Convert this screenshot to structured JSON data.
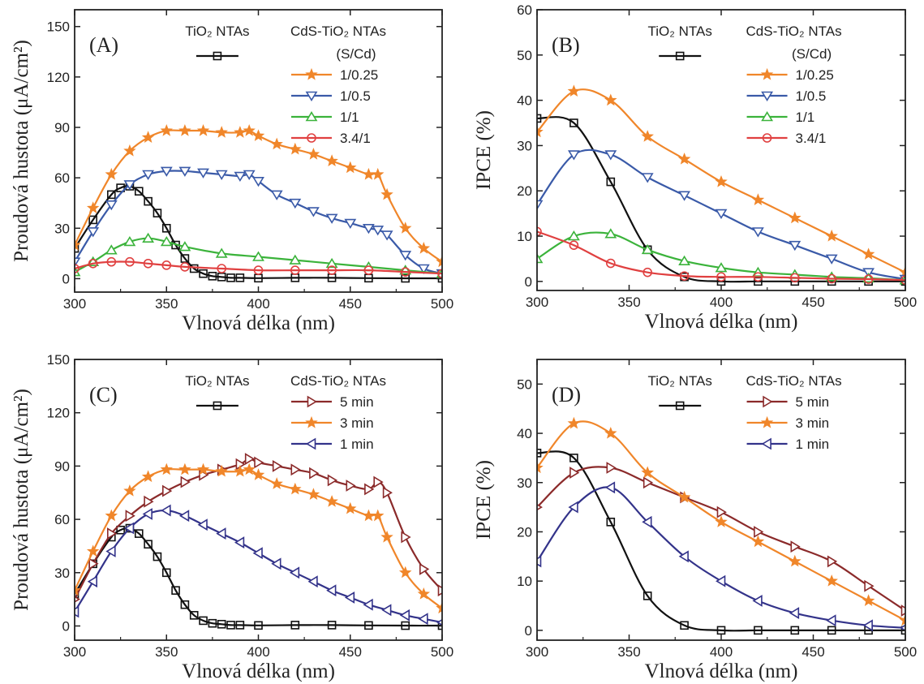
{
  "chart_data": [
    {
      "type": "line",
      "panel_label": "(A)",
      "xlabel": "Vlnová délka (nm)",
      "ylabel": "Proudová hustota (μA/cm²)",
      "xlim": [
        300,
        500
      ],
      "ylim": [
        -8,
        160
      ],
      "xticks": [
        300,
        350,
        400,
        450,
        500
      ],
      "yticks": [
        0,
        30,
        60,
        90,
        120,
        150
      ],
      "legend": {
        "ref_title": "TiO₂ NTAs",
        "title": "CdS-TiO₂ NTAs",
        "subtitle": "(S/Cd)"
      },
      "series": [
        {
          "name": "TiO₂ NTAs",
          "color": "#111111",
          "marker": "square",
          "x": [
            300,
            310,
            320,
            325,
            330,
            335,
            340,
            345,
            350,
            355,
            360,
            365,
            370,
            375,
            380,
            385,
            390,
            400,
            420,
            440,
            460,
            480,
            500
          ],
          "y": [
            18,
            35,
            50,
            54,
            55,
            52,
            46,
            39,
            30,
            20,
            12,
            6,
            3,
            1.5,
            1,
            0.5,
            0.5,
            0.3,
            0.5,
            0.5,
            0.3,
            0.2,
            0.2
          ]
        },
        {
          "name": "1/0.25",
          "color": "#f0862a",
          "marker": "star",
          "x": [
            300,
            310,
            320,
            330,
            340,
            350,
            360,
            370,
            380,
            390,
            395,
            400,
            410,
            420,
            430,
            440,
            450,
            460,
            465,
            470,
            480,
            490,
            500
          ],
          "y": [
            20,
            42,
            62,
            76,
            84,
            88,
            88,
            88,
            87,
            87,
            88,
            85,
            80,
            77,
            74,
            70,
            66,
            62,
            62,
            50,
            30,
            18,
            10
          ]
        },
        {
          "name": "1/0.5",
          "color": "#3a5aa8",
          "marker": "triangle-down",
          "x": [
            300,
            310,
            320,
            330,
            340,
            350,
            360,
            370,
            380,
            390,
            395,
            400,
            410,
            420,
            430,
            440,
            450,
            460,
            465,
            470,
            480,
            490,
            500
          ],
          "y": [
            10,
            28,
            44,
            56,
            62,
            64,
            64,
            63,
            62,
            61,
            62,
            58,
            50,
            45,
            40,
            36,
            33,
            30,
            29,
            26,
            14,
            6,
            3
          ]
        },
        {
          "name": "1/1",
          "color": "#3bb33b",
          "marker": "triangle-up",
          "x": [
            300,
            310,
            320,
            330,
            340,
            350,
            360,
            380,
            400,
            420,
            440,
            460,
            480,
            500
          ],
          "y": [
            4,
            10,
            17,
            22,
            24,
            22,
            19,
            15,
            13,
            11,
            9,
            7,
            5,
            3
          ]
        },
        {
          "name": "3.4/1",
          "color": "#e04040",
          "marker": "circle",
          "x": [
            300,
            310,
            320,
            330,
            340,
            350,
            360,
            380,
            400,
            420,
            440,
            460,
            480,
            500
          ],
          "y": [
            6,
            9,
            10,
            10,
            9,
            8,
            7,
            6,
            5,
            5,
            5,
            5,
            4,
            3
          ]
        }
      ]
    },
    {
      "type": "line",
      "panel_label": "(B)",
      "xlabel": "Vlnová délka (nm)",
      "ylabel": "IPCE (%)",
      "xlim": [
        300,
        500
      ],
      "ylim": [
        -2,
        60
      ],
      "xticks": [
        300,
        350,
        400,
        450,
        500
      ],
      "yticks": [
        0,
        10,
        20,
        30,
        40,
        50,
        60
      ],
      "legend": {
        "ref_title": "TiO₂ NTAs",
        "title": "CdS-TiO₂ NTAs",
        "subtitle": "(S/Cd)"
      },
      "series": [
        {
          "name": "TiO₂ NTAs",
          "color": "#111111",
          "marker": "square",
          "x": [
            300,
            320,
            340,
            360,
            380,
            400,
            420,
            440,
            460,
            480,
            500
          ],
          "y": [
            36,
            35,
            22,
            7,
            1,
            0,
            0,
            0,
            0,
            0,
            0
          ]
        },
        {
          "name": "1/0.25",
          "color": "#f0862a",
          "marker": "star",
          "x": [
            300,
            320,
            340,
            360,
            380,
            400,
            420,
            440,
            460,
            480,
            500
          ],
          "y": [
            33,
            42,
            40,
            32,
            27,
            22,
            18,
            14,
            10,
            6,
            2
          ]
        },
        {
          "name": "1/0.5",
          "color": "#3a5aa8",
          "marker": "triangle-down",
          "x": [
            300,
            320,
            340,
            360,
            380,
            400,
            420,
            440,
            460,
            480,
            500
          ],
          "y": [
            17,
            28,
            28,
            23,
            19,
            15,
            11,
            8,
            5,
            2,
            0.5
          ]
        },
        {
          "name": "1/1",
          "color": "#3bb33b",
          "marker": "triangle-up",
          "x": [
            300,
            320,
            340,
            360,
            380,
            400,
            420,
            440,
            460,
            480,
            500
          ],
          "y": [
            5,
            10,
            10.5,
            7,
            4.5,
            3,
            2,
            1.5,
            1,
            0.7,
            0.3
          ]
        },
        {
          "name": "3.4/1",
          "color": "#e04040",
          "marker": "circle",
          "x": [
            300,
            320,
            340,
            360,
            380,
            400,
            420,
            440,
            460,
            480,
            500
          ],
          "y": [
            11,
            8,
            4,
            2,
            1.2,
            1,
            1,
            0.8,
            0.6,
            0.5,
            0.3
          ]
        }
      ]
    },
    {
      "type": "line",
      "panel_label": "(C)",
      "xlabel": "Vlnová délka (nm)",
      "ylabel": "Proudová hustota (μA/cm²)",
      "xlim": [
        300,
        500
      ],
      "ylim": [
        -8,
        150
      ],
      "xticks": [
        300,
        350,
        400,
        450,
        500
      ],
      "yticks": [
        0,
        30,
        60,
        90,
        120,
        150
      ],
      "legend": {
        "ref_title": "TiO₂ NTAs",
        "title": "CdS-TiO₂ NTAs",
        "subtitle": ""
      },
      "series": [
        {
          "name": "TiO₂ NTAs",
          "color": "#111111",
          "marker": "square",
          "x": [
            300,
            310,
            320,
            325,
            330,
            335,
            340,
            345,
            350,
            355,
            360,
            365,
            370,
            375,
            380,
            385,
            390,
            400,
            420,
            440,
            460,
            480,
            500
          ],
          "y": [
            18,
            35,
            50,
            54,
            55,
            52,
            46,
            39,
            30,
            20,
            12,
            6,
            3,
            1.5,
            1,
            0.5,
            0.5,
            0.3,
            0.5,
            0.5,
            0.3,
            0.2,
            0.2
          ]
        },
        {
          "name": "5 min",
          "color": "#8b2a2a",
          "marker": "triangle-right",
          "x": [
            300,
            310,
            320,
            330,
            340,
            350,
            360,
            370,
            380,
            390,
            395,
            400,
            410,
            420,
            430,
            440,
            450,
            460,
            465,
            470,
            480,
            490,
            500
          ],
          "y": [
            15,
            35,
            52,
            62,
            70,
            76,
            81,
            85,
            88,
            91,
            94,
            92,
            90,
            88,
            86,
            82,
            79,
            77,
            81,
            75,
            50,
            32,
            20
          ]
        },
        {
          "name": "3 min",
          "color": "#f0862a",
          "marker": "star",
          "x": [
            300,
            310,
            320,
            330,
            340,
            350,
            360,
            370,
            380,
            390,
            395,
            400,
            410,
            420,
            430,
            440,
            450,
            460,
            465,
            470,
            480,
            490,
            500
          ],
          "y": [
            20,
            42,
            62,
            76,
            84,
            88,
            88,
            88,
            87,
            87,
            88,
            85,
            80,
            77,
            74,
            70,
            66,
            62,
            62,
            50,
            30,
            18,
            10
          ]
        },
        {
          "name": "1 min",
          "color": "#33338a",
          "marker": "triangle-left",
          "x": [
            300,
            310,
            320,
            330,
            340,
            350,
            360,
            370,
            380,
            390,
            400,
            410,
            420,
            430,
            440,
            450,
            460,
            470,
            480,
            490,
            500
          ],
          "y": [
            8,
            25,
            42,
            55,
            63,
            65,
            62,
            57,
            52,
            47,
            41,
            35,
            30,
            25,
            20,
            16,
            12,
            9,
            6,
            4,
            2
          ]
        }
      ]
    },
    {
      "type": "line",
      "panel_label": "(D)",
      "xlabel": "Vlnová délka (nm)",
      "ylabel": "IPCE (%)",
      "xlim": [
        300,
        500
      ],
      "ylim": [
        -2,
        55
      ],
      "xticks": [
        300,
        350,
        400,
        450,
        500
      ],
      "yticks": [
        0,
        10,
        20,
        30,
        40,
        50
      ],
      "legend": {
        "ref_title": "TiO₂ NTAs",
        "title": "CdS-TiO₂ NTAs",
        "subtitle": ""
      },
      "series": [
        {
          "name": "TiO₂ NTAs",
          "color": "#111111",
          "marker": "square",
          "x": [
            300,
            320,
            340,
            360,
            380,
            400,
            420,
            440,
            460,
            480,
            500
          ],
          "y": [
            36,
            35,
            22,
            7,
            1,
            0,
            0,
            0,
            0,
            0,
            0
          ]
        },
        {
          "name": "5 min",
          "color": "#8b2a2a",
          "marker": "triangle-right",
          "x": [
            300,
            320,
            340,
            360,
            380,
            400,
            420,
            440,
            460,
            480,
            500
          ],
          "y": [
            25,
            32,
            33,
            30,
            27,
            24,
            20,
            17,
            14,
            9,
            4
          ]
        },
        {
          "name": "3 min",
          "color": "#f0862a",
          "marker": "star",
          "x": [
            300,
            320,
            340,
            360,
            380,
            400,
            420,
            440,
            460,
            480,
            500
          ],
          "y": [
            33,
            42,
            40,
            32,
            27,
            22,
            18,
            14,
            10,
            6,
            2
          ]
        },
        {
          "name": "1 min",
          "color": "#33338a",
          "marker": "triangle-left",
          "x": [
            300,
            320,
            340,
            360,
            380,
            400,
            420,
            440,
            460,
            480,
            500
          ],
          "y": [
            14,
            25,
            29,
            22,
            15,
            10,
            6,
            3.5,
            2,
            1,
            0.5
          ]
        }
      ]
    }
  ]
}
